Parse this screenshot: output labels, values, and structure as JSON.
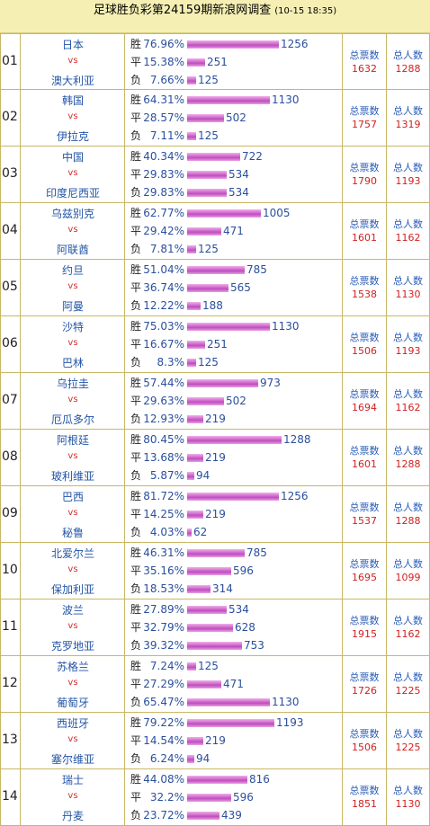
{
  "title": "足球胜负彩第24159期新浪网调查",
  "date": "(10-15 18:35)",
  "labels": {
    "win": "胜",
    "draw": "平",
    "lose": "负",
    "vs": "vs",
    "total_votes": "总票数",
    "total_people": "总人数"
  },
  "matches": [
    {
      "no": "01",
      "home": "日本",
      "away": "澳大利亚",
      "win_pct": "76.96%",
      "win": 1256,
      "draw_pct": "15.38%",
      "draw": 251,
      "lose_pct": "7.66%",
      "lose": 125,
      "votes": "1632",
      "people": "1288"
    },
    {
      "no": "02",
      "home": "韩国",
      "away": "伊拉克",
      "win_pct": "64.31%",
      "win": 1130,
      "draw_pct": "28.57%",
      "draw": 502,
      "lose_pct": "7.11%",
      "lose": 125,
      "votes": "1757",
      "people": "1319"
    },
    {
      "no": "03",
      "home": "中国",
      "away": "印度尼西亚",
      "win_pct": "40.34%",
      "win": 722,
      "draw_pct": "29.83%",
      "draw": 534,
      "lose_pct": "29.83%",
      "lose": 534,
      "votes": "1790",
      "people": "1193"
    },
    {
      "no": "04",
      "home": "乌兹别克",
      "away": "阿联酋",
      "win_pct": "62.77%",
      "win": 1005,
      "draw_pct": "29.42%",
      "draw": 471,
      "lose_pct": "7.81%",
      "lose": 125,
      "votes": "1601",
      "people": "1162"
    },
    {
      "no": "05",
      "home": "约旦",
      "away": "阿曼",
      "win_pct": "51.04%",
      "win": 785,
      "draw_pct": "36.74%",
      "draw": 565,
      "lose_pct": "12.22%",
      "lose": 188,
      "votes": "1538",
      "people": "1130"
    },
    {
      "no": "06",
      "home": "沙特",
      "away": "巴林",
      "win_pct": "75.03%",
      "win": 1130,
      "draw_pct": "16.67%",
      "draw": 251,
      "lose_pct": "8.3%",
      "lose": 125,
      "votes": "1506",
      "people": "1193"
    },
    {
      "no": "07",
      "home": "乌拉圭",
      "away": "厄瓜多尔",
      "win_pct": "57.44%",
      "win": 973,
      "draw_pct": "29.63%",
      "draw": 502,
      "lose_pct": "12.93%",
      "lose": 219,
      "votes": "1694",
      "people": "1162"
    },
    {
      "no": "08",
      "home": "阿根廷",
      "away": "玻利维亚",
      "win_pct": "80.45%",
      "win": 1288,
      "draw_pct": "13.68%",
      "draw": 219,
      "lose_pct": "5.87%",
      "lose": 94,
      "votes": "1601",
      "people": "1288"
    },
    {
      "no": "09",
      "home": "巴西",
      "away": "秘鲁",
      "win_pct": "81.72%",
      "win": 1256,
      "draw_pct": "14.25%",
      "draw": 219,
      "lose_pct": "4.03%",
      "lose": 62,
      "votes": "1537",
      "people": "1288"
    },
    {
      "no": "10",
      "home": "北爱尔兰",
      "away": "保加利亚",
      "win_pct": "46.31%",
      "win": 785,
      "draw_pct": "35.16%",
      "draw": 596,
      "lose_pct": "18.53%",
      "lose": 314,
      "votes": "1695",
      "people": "1099"
    },
    {
      "no": "11",
      "home": "波兰",
      "away": "克罗地亚",
      "win_pct": "27.89%",
      "win": 534,
      "draw_pct": "32.79%",
      "draw": 628,
      "lose_pct": "39.32%",
      "lose": 753,
      "votes": "1915",
      "people": "1162"
    },
    {
      "no": "12",
      "home": "苏格兰",
      "away": "葡萄牙",
      "win_pct": "7.24%",
      "win": 125,
      "draw_pct": "27.29%",
      "draw": 471,
      "lose_pct": "65.47%",
      "lose": 1130,
      "votes": "1726",
      "people": "1225"
    },
    {
      "no": "13",
      "home": "西班牙",
      "away": "塞尔维亚",
      "win_pct": "79.22%",
      "win": 1193,
      "draw_pct": "14.54%",
      "draw": 219,
      "lose_pct": "6.24%",
      "lose": 94,
      "votes": "1506",
      "people": "1225"
    },
    {
      "no": "14",
      "home": "瑞士",
      "away": "丹麦",
      "win_pct": "44.08%",
      "win": 816,
      "draw_pct": "32.2%",
      "draw": 596,
      "lose_pct": "23.72%",
      "lose": 439,
      "votes": "1851",
      "people": "1130"
    }
  ]
}
